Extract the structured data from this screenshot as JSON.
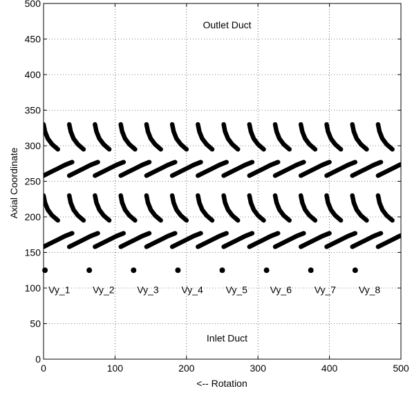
{
  "chart_data": {
    "type": "scatter",
    "title": "",
    "xlabel": "<-- Rotation",
    "ylabel": "Axial Coordinate",
    "xlim": [
      0,
      500
    ],
    "ylim": [
      0,
      500
    ],
    "xticks": [
      0,
      100,
      200,
      300,
      400,
      500
    ],
    "yticks": [
      0,
      50,
      100,
      150,
      200,
      250,
      300,
      350,
      400,
      450,
      500
    ],
    "grid": true,
    "blade_rows": [
      {
        "kind": "stator",
        "pitch": 36,
        "blade_count": 14,
        "points": [
          [
            0,
            330
          ],
          [
            2,
            320
          ],
          [
            6,
            310
          ],
          [
            12,
            302
          ],
          [
            20,
            295
          ]
        ]
      },
      {
        "kind": "rotor",
        "pitch": 36,
        "blade_count": 14,
        "points": [
          [
            0,
            258
          ],
          [
            10,
            263
          ],
          [
            20,
            268
          ],
          [
            30,
            273
          ],
          [
            40,
            277
          ]
        ]
      },
      {
        "kind": "stator",
        "pitch": 36,
        "blade_count": 14,
        "points": [
          [
            0,
            230
          ],
          [
            2,
            220
          ],
          [
            6,
            210
          ],
          [
            12,
            202
          ],
          [
            20,
            195
          ]
        ]
      },
      {
        "kind": "rotor",
        "pitch": 36,
        "blade_count": 14,
        "points": [
          [
            0,
            158
          ],
          [
            10,
            163
          ],
          [
            20,
            168
          ],
          [
            30,
            173
          ],
          [
            40,
            177
          ]
        ]
      }
    ],
    "probes": [
      {
        "x": 2,
        "y": 125,
        "label": "Vy_1"
      },
      {
        "x": 64,
        "y": 125,
        "label": "Vy_2"
      },
      {
        "x": 126,
        "y": 125,
        "label": "Vy_3"
      },
      {
        "x": 188,
        "y": 125,
        "label": "Vy_4"
      },
      {
        "x": 250,
        "y": 125,
        "label": "Vy_5"
      },
      {
        "x": 312,
        "y": 125,
        "label": "Vy_6"
      },
      {
        "x": 374,
        "y": 125,
        "label": "Vy_7"
      },
      {
        "x": 436,
        "y": 125,
        "label": "Vy_8"
      }
    ],
    "annotations": [
      {
        "text": "Outlet Duct",
        "x": 250,
        "y": 465
      },
      {
        "text": "Inlet Duct",
        "x": 250,
        "y": 25
      }
    ]
  }
}
